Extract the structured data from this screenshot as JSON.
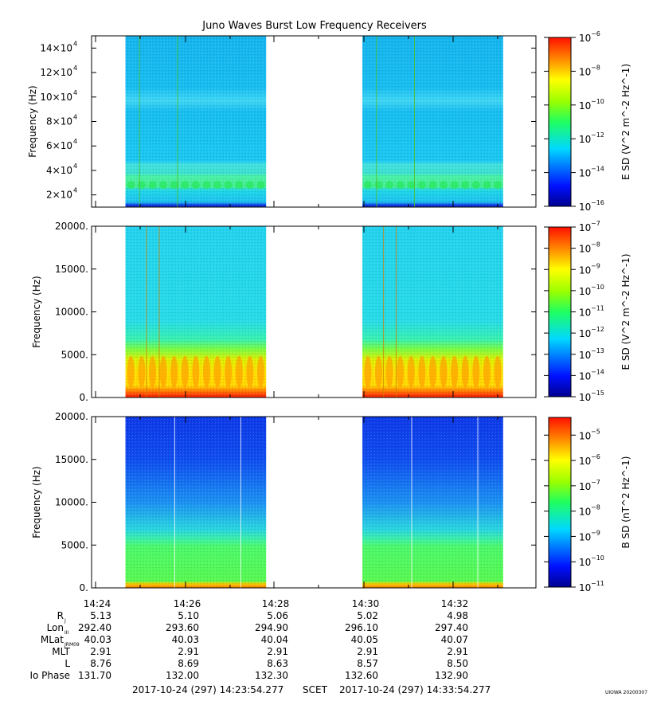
{
  "title": "Juno Waves Burst Low Frequency Receivers",
  "chart_data": [
    {
      "type": "heatmap",
      "ylabel": "Frequency (Hz)",
      "cbar_label": "E SD (V^2 m^-2 Hz^-1)",
      "yticks": [
        {
          "value": 20000,
          "mant": "2",
          "exp": "4"
        },
        {
          "value": 40000,
          "mant": "4",
          "exp": "4"
        },
        {
          "value": 60000,
          "mant": "6",
          "exp": "4"
        },
        {
          "value": 80000,
          "mant": "8",
          "exp": "4"
        },
        {
          "value": 100000,
          "mant": "10",
          "exp": "4"
        },
        {
          "value": 120000,
          "mant": "12",
          "exp": "4"
        },
        {
          "value": 140000,
          "mant": "14",
          "exp": "4"
        }
      ],
      "ylim": [
        10000,
        150000
      ],
      "cbar_ticks": [
        -6,
        -8,
        -10,
        -12,
        -14,
        -16
      ],
      "cbar_range": [
        -16,
        -6
      ],
      "cbar_scale": "log",
      "data_intervals": [
        [
          "14:24:40",
          "14:27:50"
        ],
        [
          "14:30:00",
          "14:33:10"
        ]
      ]
    },
    {
      "type": "heatmap",
      "ylabel": "Frequency (Hz)",
      "cbar_label": "E SD (V^2 m^-2 Hz^-1)",
      "yticks": [
        {
          "value": 0,
          "label": "0."
        },
        {
          "value": 5000,
          "label": "5000."
        },
        {
          "value": 10000,
          "label": "10000."
        },
        {
          "value": 15000,
          "label": "15000."
        },
        {
          "value": 20000,
          "label": "20000."
        }
      ],
      "ylim": [
        0,
        20000
      ],
      "cbar_ticks": [
        -7,
        -8,
        -9,
        -10,
        -11,
        -12,
        -13,
        -14,
        -15
      ],
      "cbar_range": [
        -15,
        -7
      ],
      "cbar_scale": "log",
      "data_intervals": [
        [
          "14:24:40",
          "14:27:50"
        ],
        [
          "14:30:00",
          "14:33:10"
        ]
      ]
    },
    {
      "type": "heatmap",
      "ylabel": "Frequency (Hz)",
      "cbar_label": "B SD (nT^2 Hz^-1)",
      "yticks": [
        {
          "value": 0,
          "label": "0."
        },
        {
          "value": 5000,
          "label": "5000."
        },
        {
          "value": 10000,
          "label": "10000."
        },
        {
          "value": 15000,
          "label": "15000."
        },
        {
          "value": 20000,
          "label": "20000."
        }
      ],
      "ylim": [
        0,
        20000
      ],
      "cbar_ticks": [
        -5,
        -6,
        -7,
        -8,
        -9,
        -10,
        -11
      ],
      "cbar_range": [
        -11,
        -4.3
      ],
      "cbar_scale": "log",
      "data_intervals": [
        [
          "14:24:40",
          "14:27:50"
        ],
        [
          "14:30:00",
          "14:33:10"
        ]
      ]
    }
  ],
  "time_axis": {
    "start": "14:23:54.277",
    "end": "14:33:54.277",
    "tick_labels": [
      "14:24",
      "14:26",
      "14:28",
      "14:30",
      "14:32"
    ]
  },
  "ephemeris": [
    {
      "label": "R",
      "sub": "J",
      "values": [
        "5.13",
        "5.10",
        "5.06",
        "5.02",
        "4.98"
      ]
    },
    {
      "label": "Lon",
      "sub": "III",
      "values": [
        "292.40",
        "293.60",
        "294.90",
        "296.10",
        "297.40"
      ]
    },
    {
      "label": "MLat",
      "sub": "JRM09",
      "values": [
        "40.03",
        "40.03",
        "40.04",
        "40.05",
        "40.07"
      ]
    },
    {
      "label": "MLT",
      "sub": "",
      "values": [
        "2.91",
        "2.91",
        "2.91",
        "2.91",
        "2.91"
      ]
    },
    {
      "label": "L",
      "sub": "",
      "values": [
        "8.76",
        "8.69",
        "8.63",
        "8.57",
        "8.50"
      ]
    },
    {
      "label": "Io Phase",
      "sub": "",
      "values": [
        "131.70",
        "132.00",
        "132.30",
        "132.60",
        "132.90"
      ]
    }
  ],
  "footer": {
    "start_time": "2017-10-24 (297) 14:23:54.277",
    "scet": "SCET",
    "end_time": "2017-10-24 (297) 14:33:54.277",
    "credit": "UIOWA 20200307"
  }
}
